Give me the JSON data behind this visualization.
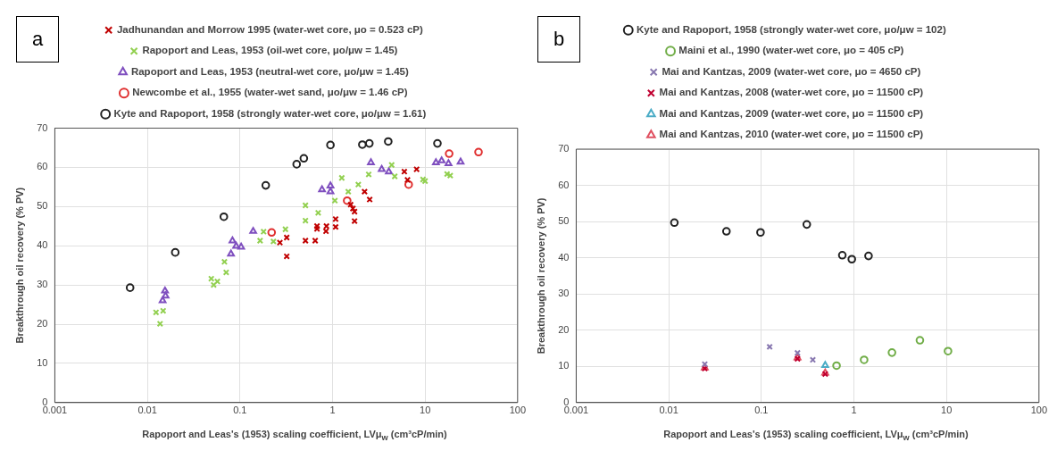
{
  "chart_data": [
    {
      "type": "scatter",
      "annotations": [
        "a"
      ],
      "xlabel": "Rapoport and Leas's (1953) scaling coefficient, LVμ$_{w}$ (cm³cP/min)",
      "ylabel": "Breakthrough oil recovery (% PV)",
      "log": "x",
      "xlim": [
        0.001,
        100
      ],
      "xticks": [
        0.001,
        0.01,
        0.1,
        1,
        10,
        100
      ],
      "ylim": [
        0,
        70
      ],
      "yticks": [
        0,
        10,
        20,
        30,
        40,
        50,
        60,
        70
      ],
      "grid": true,
      "legend": "top",
      "series": [
        {
          "name": "Jadhunandan and Morrow 1995 (water-wet core, μo = 0.523 cP)",
          "color": "#c00000",
          "marker": "cross",
          "x": [
            0.27,
            0.32,
            0.32,
            0.51,
            0.65,
            0.68,
            0.68,
            0.86,
            0.85,
            1.08,
            1.08,
            1.57,
            1.66,
            1.73,
            1.73,
            2.22,
            2.52,
            5.97,
            6.46,
            8.1
          ],
          "values": [
            40.8,
            42.1,
            37.3,
            41.3,
            41.3,
            45.0,
            44.3,
            45.0,
            43.7,
            46.8,
            44.8,
            50.5,
            49.5,
            48.7,
            46.3,
            53.8,
            51.8,
            58.9,
            56.8,
            59.5
          ]
        },
        {
          "name": "Rapoport and Leas, 1953 (oil-wet core, μo/μw = 1.45)",
          "color": "#92d050",
          "marker": "cross",
          "x": [
            0.0124,
            0.0148,
            0.0137,
            0.049,
            0.057,
            0.052,
            0.068,
            0.071,
            0.165,
            0.18,
            0.23,
            0.31,
            0.51,
            0.51,
            0.7,
            1.06,
            1.26,
            1.48,
            1.9,
            2.46,
            4.36,
            4.7,
            9.5,
            10,
            17.3,
            18.7
          ],
          "values": [
            23.0,
            23.4,
            20.1,
            31.6,
            30.9,
            30.0,
            35.9,
            33.2,
            41.3,
            43.6,
            41.1,
            44.2,
            50.3,
            46.4,
            48.4,
            51.5,
            57.3,
            53.8,
            55.6,
            58.2,
            60.6,
            57.7,
            56.9,
            56.5,
            58.3,
            57.9
          ]
        },
        {
          "name": "Rapoport and Leas, 1953 (neutral-wet core, μo/μw = 1.45)",
          "color": "#7f4fbf",
          "marker": "triangle",
          "x": [
            0.0155,
            0.0157,
            0.0146,
            0.083,
            0.08,
            0.091,
            0.103,
            0.139,
            0.77,
            0.95,
            0.95,
            2.6,
            3.4,
            4.06,
            13.1,
            15.1,
            17.9,
            24.2
          ],
          "values": [
            28.5,
            27.2,
            26.0,
            41.3,
            37.9,
            39.9,
            39.7,
            43.7,
            54.3,
            55.3,
            53.8,
            61.2,
            59.5,
            58.9,
            61.2,
            61.7,
            61.0,
            61.4
          ]
        },
        {
          "name": "Newcombe et al., 1955 (water-wet sand, μo/μw = 1.46 cP)",
          "color": "#e03030",
          "marker": "circle",
          "x": [
            0.22,
            1.44,
            6.65,
            18.2,
            37.8
          ],
          "values": [
            43.4,
            51.5,
            55.6,
            63.5,
            63.9
          ]
        },
        {
          "name": "Kyte and Rapoport, 1958 (strongly water-wet core, μo/μw = 1.61)",
          "color": "#222222",
          "marker": "circle",
          "x": [
            0.0065,
            0.02,
            0.067,
            0.19,
            0.41,
            0.49,
            0.95,
            2.1,
            2.5,
            4.0,
            13.6
          ],
          "values": [
            29.3,
            38.3,
            47.4,
            55.4,
            60.8,
            62.3,
            65.7,
            65.8,
            66.1,
            66.6,
            66.1
          ]
        }
      ]
    },
    {
      "type": "scatter",
      "annotations": [
        "b"
      ],
      "xlabel": "Rapoport and Leas's (1953) scaling coefficient, LVμ$_{w}$ (cm³cP/min)",
      "ylabel": "Breakthrough oil recovery (% PV)",
      "log": "x",
      "xlim": [
        0.001,
        100
      ],
      "xticks": [
        0.001,
        0.01,
        0.1,
        1,
        10,
        100
      ],
      "ylim": [
        0,
        70
      ],
      "yticks": [
        0,
        10,
        20,
        30,
        40,
        50,
        60,
        70
      ],
      "grid": true,
      "legend": "top",
      "series": [
        {
          "name": "Kyte and Rapoport, 1958 (strongly water-wet core, μo/μw = 102)",
          "color": "#222222",
          "marker": "circle",
          "x": [
            0.0115,
            0.042,
            0.098,
            0.31,
            0.75,
            0.95,
            1.44
          ],
          "values": [
            49.7,
            47.3,
            47.0,
            49.2,
            40.7,
            39.6,
            40.5
          ]
        },
        {
          "name": "Maini et al., 1990 (water-wet core, μo = 405 cP)",
          "color": "#70ad47",
          "marker": "circle",
          "x": [
            0.65,
            1.29,
            2.58,
            5.17,
            10.4
          ],
          "values": [
            10.2,
            11.8,
            13.8,
            17.2,
            14.2
          ]
        },
        {
          "name": "Mai and Kantzas, 2009 (water-wet core, μo = 4650 cP)",
          "color": "#8878b0",
          "marker": "cross",
          "x": [
            0.0245,
            0.123,
            0.246,
            0.36
          ],
          "values": [
            10.6,
            15.4,
            13.7,
            11.8
          ]
        },
        {
          "name": "Mai and Kantzas, 2008 (water-wet core, μo = 11500 cP)",
          "color": "#c00030",
          "marker": "cross",
          "x": [
            0.0245,
            0.246,
            0.49
          ],
          "values": [
            9.4,
            12.1,
            7.9
          ]
        },
        {
          "name": "Mai and Kantzas, 2009 (water-wet core, μo = 11500 cP)",
          "color": "#4bacc6",
          "marker": "triangle",
          "x": [
            0.49
          ],
          "values": [
            10.3
          ]
        },
        {
          "name": "Mai and Kantzas, 2010 (water-wet core, μo = 11500 cP)",
          "color": "#e05060",
          "marker": "triangle",
          "x": [
            0.0245,
            0.246,
            0.49
          ],
          "values": [
            9.6,
            12.4,
            8.2
          ]
        }
      ]
    }
  ]
}
